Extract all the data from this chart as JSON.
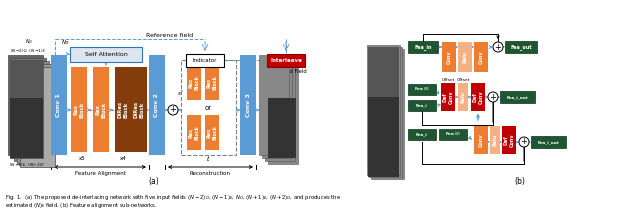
{
  "figure_width": 6.4,
  "figure_height": 2.1,
  "dpi": 100,
  "background_color": "#ffffff",
  "label_a": "(a)",
  "label_b": "(b)",
  "caption_line1": "Fig. 1.  (a) The proposed de-interlacing network with five input fields $(N-2)_O$, $(N-1)_E$, $N_O$, $(N+1)_E$, $(N+2)_O$, and produces the",
  "caption_line2": "estimated $(N)_E$ field. (b) Feature alignment sub-networks.",
  "colors": {
    "blue_block": "#5b9bd5",
    "blue_block_dark": "#2e75b6",
    "orange_block": "#ed7d31",
    "dark_orange_block": "#843c0c",
    "green_block": "#375623",
    "green_block2": "#4a7c2f",
    "red_block": "#c00000",
    "pink_block": "#f4b183",
    "dark_brown": "#7b3f00",
    "interleave_red": "#c00000",
    "self_attn_fill": "#dce6f1",
    "self_attn_edge": "#2e74b5",
    "indicator_fill": "#ffffff",
    "arrow_blue": "#5b9bd5"
  }
}
